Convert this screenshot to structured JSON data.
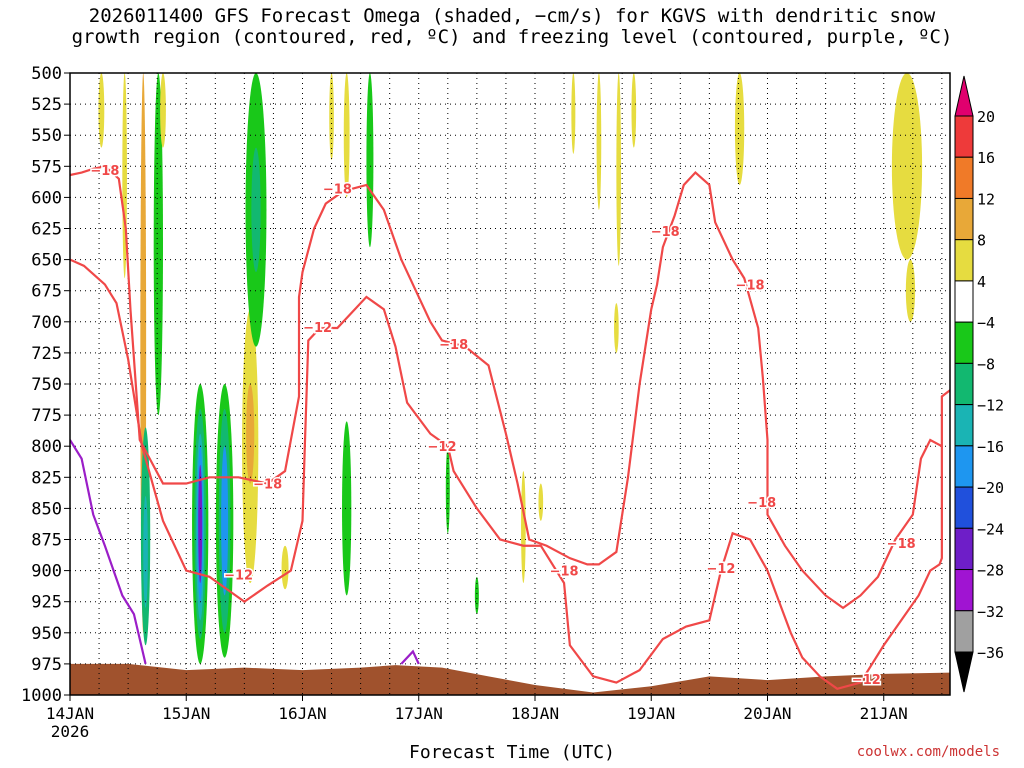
{
  "title_line1": "2026011400 GFS Forecast Omega (shaded, −cm/s) for KGVS with dendritic snow",
  "title_line2": "growth region (contoured, red, ºC) and freezing level (contoured, purple, ºC)",
  "credit": "coolwx.com/models",
  "chart_data": {
    "type": "heatmap",
    "xlabel": "Forecast Time (UTC)",
    "ylabel": "",
    "x_ticks": [
      {
        "t": 0,
        "label": "14JAN",
        "sub": "2026"
      },
      {
        "t": 1,
        "label": "15JAN",
        "sub": ""
      },
      {
        "t": 2,
        "label": "16JAN",
        "sub": ""
      },
      {
        "t": 3,
        "label": "17JAN",
        "sub": ""
      },
      {
        "t": 4,
        "label": "18JAN",
        "sub": ""
      },
      {
        "t": 5,
        "label": "19JAN",
        "sub": ""
      },
      {
        "t": 6,
        "label": "20JAN",
        "sub": ""
      },
      {
        "t": 7,
        "label": "21JAN",
        "sub": ""
      }
    ],
    "x_range_days": [
      0,
      7.57
    ],
    "y_ticks": [
      500,
      525,
      550,
      575,
      600,
      625,
      650,
      675,
      700,
      725,
      750,
      775,
      800,
      825,
      850,
      875,
      900,
      925,
      950,
      975,
      1000
    ],
    "y_range_hpa": [
      500,
      1000
    ],
    "grid": true,
    "colorbar": {
      "labels": [
        "20",
        "16",
        "12",
        "8",
        "4",
        "−4",
        "−8",
        "−12",
        "−16",
        "−20",
        "−24",
        "−28",
        "−32",
        "−36"
      ],
      "colors": [
        "#e0006e",
        "#ee3a3a",
        "#f07a28",
        "#e8a838",
        "#e6dc40",
        "#ffffff",
        "#19c819",
        "#12b870",
        "#1ab4b4",
        "#1e96f0",
        "#2050dc",
        "#6e1ec8",
        "#a014d2",
        "#a0a0a0",
        "#000000"
      ]
    },
    "shaded_regions": [
      {
        "t": 0.27,
        "p_top": 500,
        "p_bot": 560,
        "w": 0.05,
        "color": "#e6dc40"
      },
      {
        "t": 0.47,
        "p_top": 500,
        "p_bot": 665,
        "w": 0.04,
        "color": "#e6dc40"
      },
      {
        "t": 0.63,
        "p_top": 500,
        "p_bot": 950,
        "w": 0.05,
        "color": "#e8a838"
      },
      {
        "t": 0.76,
        "p_top": 500,
        "p_bot": 775,
        "w": 0.08,
        "color": "#19c819"
      },
      {
        "t": 0.8,
        "p_top": 500,
        "p_bot": 560,
        "w": 0.05,
        "color": "#e6dc40"
      },
      {
        "t": 0.65,
        "p_top": 785,
        "p_bot": 960,
        "w": 0.08,
        "color": "#12b870"
      },
      {
        "t": 0.65,
        "p_top": 840,
        "p_bot": 930,
        "w": 0.04,
        "color": "#1ab4b4"
      },
      {
        "t": 1.12,
        "p_top": 750,
        "p_bot": 975,
        "w": 0.14,
        "color": "#19c819"
      },
      {
        "t": 1.12,
        "p_top": 770,
        "p_bot": 955,
        "w": 0.1,
        "color": "#12b870"
      },
      {
        "t": 1.12,
        "p_top": 790,
        "p_bot": 940,
        "w": 0.07,
        "color": "#1ab4b4"
      },
      {
        "t": 1.12,
        "p_top": 800,
        "p_bot": 925,
        "w": 0.05,
        "color": "#1e96f0"
      },
      {
        "t": 1.12,
        "p_top": 815,
        "p_bot": 910,
        "w": 0.03,
        "color": "#6e1ec8"
      },
      {
        "t": 1.33,
        "p_top": 750,
        "p_bot": 970,
        "w": 0.15,
        "color": "#19c819"
      },
      {
        "t": 1.33,
        "p_top": 770,
        "p_bot": 950,
        "w": 0.1,
        "color": "#12b870"
      },
      {
        "t": 1.33,
        "p_top": 800,
        "p_bot": 920,
        "w": 0.06,
        "color": "#1e96f0"
      },
      {
        "t": 1.55,
        "p_top": 690,
        "p_bot": 910,
        "w": 0.14,
        "color": "#e6dc40"
      },
      {
        "t": 1.55,
        "p_top": 750,
        "p_bot": 830,
        "w": 0.07,
        "color": "#e8a838"
      },
      {
        "t": 1.6,
        "p_top": 500,
        "p_bot": 720,
        "w": 0.18,
        "color": "#19c819"
      },
      {
        "t": 1.6,
        "p_top": 560,
        "p_bot": 660,
        "w": 0.08,
        "color": "#12b870"
      },
      {
        "t": 1.85,
        "p_top": 880,
        "p_bot": 915,
        "w": 0.06,
        "color": "#e6dc40"
      },
      {
        "t": 2.58,
        "p_top": 500,
        "p_bot": 640,
        "w": 0.06,
        "color": "#19c819"
      },
      {
        "t": 2.38,
        "p_top": 500,
        "p_bot": 600,
        "w": 0.05,
        "color": "#e6dc40"
      },
      {
        "t": 2.38,
        "p_top": 780,
        "p_bot": 920,
        "w": 0.08,
        "color": "#19c819"
      },
      {
        "t": 2.25,
        "p_top": 500,
        "p_bot": 570,
        "w": 0.04,
        "color": "#e6dc40"
      },
      {
        "t": 3.25,
        "p_top": 800,
        "p_bot": 870,
        "w": 0.03,
        "color": "#19c819"
      },
      {
        "t": 3.5,
        "p_top": 905,
        "p_bot": 935,
        "w": 0.03,
        "color": "#19c819"
      },
      {
        "t": 3.9,
        "p_top": 820,
        "p_bot": 910,
        "w": 0.04,
        "color": "#e6dc40"
      },
      {
        "t": 4.05,
        "p_top": 830,
        "p_bot": 860,
        "w": 0.04,
        "color": "#e6dc40"
      },
      {
        "t": 4.33,
        "p_top": 500,
        "p_bot": 565,
        "w": 0.03,
        "color": "#e6dc40"
      },
      {
        "t": 4.55,
        "p_top": 500,
        "p_bot": 610,
        "w": 0.04,
        "color": "#e6dc40"
      },
      {
        "t": 4.7,
        "p_top": 685,
        "p_bot": 725,
        "w": 0.04,
        "color": "#e6dc40"
      },
      {
        "t": 4.72,
        "p_top": 500,
        "p_bot": 655,
        "w": 0.04,
        "color": "#e6dc40"
      },
      {
        "t": 4.85,
        "p_top": 500,
        "p_bot": 560,
        "w": 0.04,
        "color": "#e6dc40"
      },
      {
        "t": 5.76,
        "p_top": 500,
        "p_bot": 590,
        "w": 0.08,
        "color": "#e6dc40"
      },
      {
        "t": 7.2,
        "p_top": 500,
        "p_bot": 650,
        "w": 0.26,
        "color": "#e6dc40"
      },
      {
        "t": 7.23,
        "p_top": 650,
        "p_bot": 700,
        "w": 0.08,
        "color": "#e6dc40"
      }
    ],
    "red_contours": [
      [
        [
          0,
          582
        ],
        [
          0.1,
          580
        ],
        [
          0.2,
          577
        ],
        [
          0.3,
          575
        ],
        [
          0.42,
          585
        ],
        [
          0.48,
          625
        ],
        [
          0.52,
          690
        ],
        [
          0.6,
          795
        ],
        [
          0.8,
          830
        ],
        [
          1.0,
          830
        ],
        [
          1.2,
          825
        ],
        [
          1.45,
          825
        ],
        [
          1.7,
          830
        ],
        [
          1.85,
          820
        ],
        [
          1.97,
          760
        ],
        [
          1.97,
          680
        ],
        [
          2.0,
          660
        ],
        [
          2.1,
          625
        ],
        [
          2.2,
          605
        ],
        [
          2.35,
          595
        ],
        [
          2.55,
          590
        ],
        [
          2.7,
          610
        ],
        [
          2.85,
          650
        ],
        [
          3.0,
          680
        ],
        [
          3.1,
          700
        ],
        [
          3.2,
          715
        ],
        [
          3.4,
          720
        ],
        [
          3.6,
          735
        ],
        [
          3.75,
          790
        ],
        [
          3.85,
          830
        ],
        [
          3.95,
          875
        ],
        [
          4.1,
          880
        ],
        [
          4.3,
          890
        ],
        [
          4.45,
          895
        ],
        [
          4.55,
          895
        ],
        [
          4.7,
          885
        ],
        [
          4.8,
          825
        ],
        [
          4.9,
          750
        ],
        [
          5.0,
          690
        ],
        [
          5.05,
          670
        ],
        [
          5.1,
          640
        ],
        [
          5.2,
          615
        ],
        [
          5.28,
          590
        ],
        [
          5.38,
          580
        ],
        [
          5.5,
          590
        ],
        [
          5.55,
          620
        ],
        [
          5.7,
          650
        ],
        [
          5.8,
          665
        ],
        [
          5.92,
          705
        ],
        [
          5.96,
          745
        ],
        [
          6.0,
          795
        ],
        [
          6.0,
          855
        ],
        [
          6.15,
          880
        ],
        [
          6.3,
          900
        ],
        [
          6.5,
          920
        ],
        [
          6.65,
          930
        ],
        [
          6.8,
          920
        ],
        [
          6.95,
          905
        ],
        [
          7.1,
          875
        ],
        [
          7.25,
          855
        ],
        [
          7.32,
          810
        ],
        [
          7.4,
          795
        ],
        [
          7.5,
          800
        ]
      ],
      [
        [
          0,
          650
        ],
        [
          0.12,
          655
        ],
        [
          0.3,
          670
        ],
        [
          0.4,
          685
        ],
        [
          0.5,
          730
        ],
        [
          0.62,
          800
        ],
        [
          0.8,
          860
        ],
        [
          1.0,
          900
        ],
        [
          1.2,
          905
        ],
        [
          1.35,
          915
        ],
        [
          1.5,
          925
        ],
        [
          1.7,
          912
        ],
        [
          1.9,
          900
        ],
        [
          2.0,
          860
        ],
        [
          2.02,
          800
        ],
        [
          2.05,
          715
        ],
        [
          2.15,
          705
        ],
        [
          2.3,
          705
        ],
        [
          2.55,
          680
        ],
        [
          2.7,
          690
        ],
        [
          2.8,
          720
        ],
        [
          2.9,
          765
        ],
        [
          3.1,
          790
        ],
        [
          3.25,
          800
        ],
        [
          3.3,
          820
        ],
        [
          3.5,
          850
        ],
        [
          3.7,
          875
        ],
        [
          3.9,
          880
        ],
        [
          4.05,
          880
        ],
        [
          4.25,
          910
        ],
        [
          4.3,
          960
        ],
        [
          4.5,
          985
        ],
        [
          4.7,
          990
        ],
        [
          4.9,
          980
        ],
        [
          5.1,
          955
        ],
        [
          5.3,
          945
        ],
        [
          5.5,
          940
        ],
        [
          5.6,
          900
        ],
        [
          5.7,
          870
        ],
        [
          5.85,
          875
        ],
        [
          6.0,
          900
        ],
        [
          6.1,
          925
        ],
        [
          6.2,
          950
        ],
        [
          6.3,
          970
        ],
        [
          6.45,
          985
        ],
        [
          6.6,
          995
        ],
        [
          6.8,
          990
        ],
        [
          7.0,
          960
        ],
        [
          7.15,
          940
        ],
        [
          7.3,
          920
        ],
        [
          7.4,
          900
        ],
        [
          7.48,
          895
        ],
        [
          7.5,
          890
        ],
        [
          7.5,
          760
        ],
        [
          7.57,
          755
        ]
      ]
    ],
    "purple_contours": [
      [
        [
          0,
          795
        ],
        [
          0.1,
          810
        ],
        [
          0.2,
          855
        ],
        [
          0.3,
          880
        ],
        [
          0.45,
          920
        ],
        [
          0.55,
          935
        ],
        [
          0.65,
          975
        ]
      ],
      [
        [
          2.85,
          975
        ],
        [
          2.95,
          965
        ],
        [
          3.0,
          975
        ]
      ]
    ],
    "ground": [
      [
        0,
        975
      ],
      [
        0.5,
        975
      ],
      [
        1.0,
        980
      ],
      [
        1.5,
        978
      ],
      [
        2.0,
        980
      ],
      [
        2.5,
        978
      ],
      [
        2.8,
        976
      ],
      [
        3.2,
        978
      ],
      [
        3.6,
        985
      ],
      [
        4.0,
        992
      ],
      [
        4.5,
        998
      ],
      [
        5.0,
        993
      ],
      [
        5.5,
        985
      ],
      [
        6.0,
        988
      ],
      [
        6.5,
        985
      ],
      [
        7.0,
        983
      ],
      [
        7.57,
        982
      ]
    ],
    "contour_labels": [
      {
        "t": 0.3,
        "p": 578,
        "text": "−18"
      },
      {
        "t": 2.3,
        "p": 593,
        "text": "−18"
      },
      {
        "t": 5.12,
        "p": 627,
        "text": "−18"
      },
      {
        "t": 5.85,
        "p": 670,
        "text": "−18"
      },
      {
        "t": 3.3,
        "p": 718,
        "text": "−18"
      },
      {
        "t": 1.7,
        "p": 830,
        "text": "−18"
      },
      {
        "t": 5.95,
        "p": 845,
        "text": "−18"
      },
      {
        "t": 4.25,
        "p": 900,
        "text": "−18"
      },
      {
        "t": 7.15,
        "p": 878,
        "text": "−18"
      },
      {
        "t": 2.13,
        "p": 704,
        "text": "−12"
      },
      {
        "t": 3.2,
        "p": 800,
        "text": "−12"
      },
      {
        "t": 1.45,
        "p": 903,
        "text": "−12"
      },
      {
        "t": 5.6,
        "p": 898,
        "text": "−12"
      },
      {
        "t": 6.85,
        "p": 987,
        "text": "−12"
      }
    ]
  }
}
